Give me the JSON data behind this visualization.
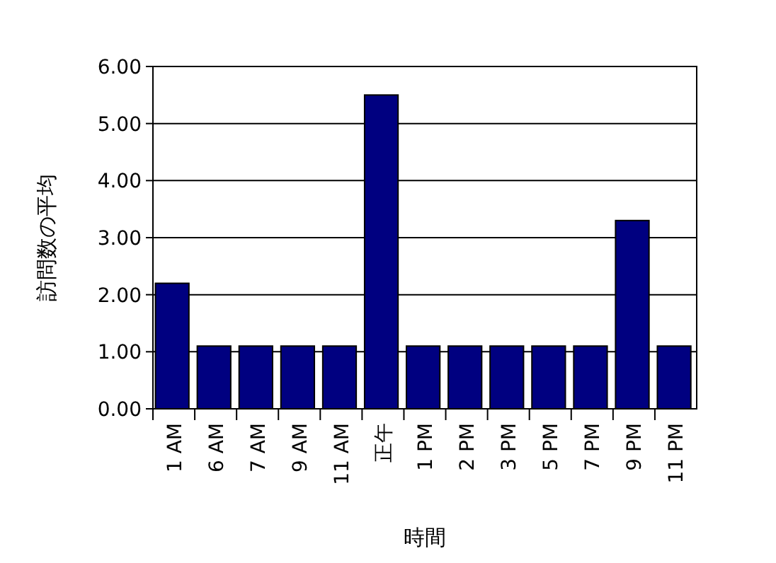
{
  "chart_data": {
    "type": "bar",
    "xlabel": "時間",
    "ylabel": "訪問数の平均",
    "categories": [
      "1 AM",
      "6 AM",
      "7 AM",
      "9 AM",
      "11 AM",
      "正午",
      "1 PM",
      "2 PM",
      "3 PM",
      "5 PM",
      "7 PM",
      "9 PM",
      "11 PM"
    ],
    "values": [
      2.2,
      1.1,
      1.1,
      1.1,
      1.1,
      5.5,
      1.1,
      1.1,
      1.1,
      1.1,
      1.1,
      3.3,
      1.1
    ],
    "color": "#000080",
    "ylim": [
      0,
      6
    ],
    "yticks": [
      {
        "value": 0,
        "label": "0.00"
      },
      {
        "value": 1,
        "label": "1.00"
      },
      {
        "value": 2,
        "label": "2.00"
      },
      {
        "value": 3,
        "label": "3.00"
      },
      {
        "value": 4,
        "label": "4.00"
      },
      {
        "value": 5,
        "label": "5.00"
      },
      {
        "value": 6,
        "label": "6.00"
      }
    ],
    "grid": "y"
  }
}
